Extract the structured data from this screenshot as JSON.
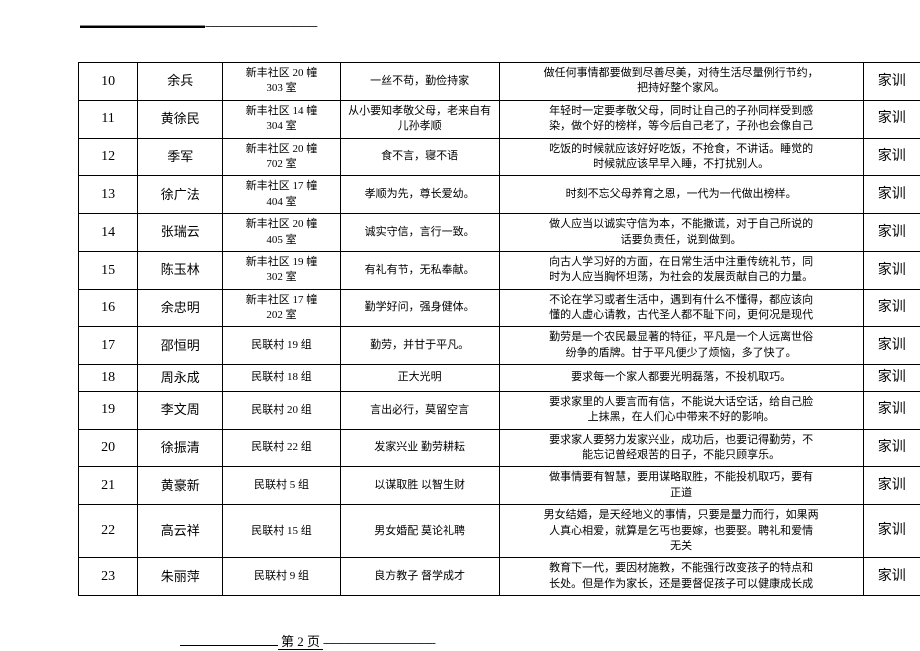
{
  "topDashes": "------------------------------------------",
  "pageLabel": "第 2 页",
  "footerDashes": "------------------------------------------",
  "rows": [
    {
      "num": "10",
      "name": "余兵",
      "addr": "新丰社区 20 幢\n303 室",
      "motto": "一丝不苟，勤俭持家",
      "desc": "做任何事情都要做到尽善尽美，对待生活尽量例行节约，\n把持好整个家风。",
      "type": "家训"
    },
    {
      "num": "11",
      "name": "黄徐民",
      "addr": "新丰社区 14 幢\n304 室",
      "motto": "从小要知孝敬父母，老来自有\n儿孙孝顺",
      "desc": "年轻时一定要孝敬父母，同时让自己的子孙同样受到感\n染，做个好的榜样，等今后自己老了，子孙也会像自己",
      "type": "家训"
    },
    {
      "num": "12",
      "name": "季军",
      "addr": "新丰社区 20 幢\n702 室",
      "motto": "食不言，寝不语",
      "desc": "吃饭的时候就应该好好吃饭，不抢食，不讲话。睡觉的\n时候就应该早早入睡，不打扰别人。",
      "type": "家训"
    },
    {
      "num": "13",
      "name": "徐广法",
      "addr": "新丰社区 17 幢\n404 室",
      "motto": "孝顺为先，尊长爱幼。",
      "desc": "时刻不忘父母养育之恩，一代为一代做出榜样。",
      "type": "家训"
    },
    {
      "num": "14",
      "name": "张瑞云",
      "addr": "新丰社区 20 幢\n405 室",
      "motto": "诚实守信，言行一致。",
      "desc": "做人应当以诚实守信为本，不能撒谎，对于自己所说的\n话要负责任，说到做到。",
      "type": "家训"
    },
    {
      "num": "15",
      "name": "陈玉林",
      "addr": "新丰社区 19 幢\n302 室",
      "motto": "有礼有节，无私奉献。",
      "desc": "向古人学习好的方面，在日常生活中注重传统礼节，同\n时为人应当胸怀坦荡，为社会的发展贡献自己的力量。",
      "type": "家训"
    },
    {
      "num": "16",
      "name": "余忠明",
      "addr": "新丰社区 17 幢\n202 室",
      "motto": "勤学好问，强身健体。",
      "desc": "不论在学习或者生活中，遇到有什么不懂得，都应该向\n懂的人虚心请教，古代圣人都不耻下问，更何况是现代",
      "type": "家训"
    },
    {
      "num": "17",
      "name": "邵恒明",
      "addr": "民联村 19 组",
      "motto": "勤劳，并甘于平凡。",
      "desc": "勤劳是一个农民最显著的特征，平凡是一个人远离世俗\n纷争的盾牌。甘于平凡便少了烦恼，多了快了。",
      "type": "家训"
    },
    {
      "num": "18",
      "name": "周永成",
      "addr": "民联村 18 组",
      "motto": "正大光明",
      "desc": "要求每一个家人都要光明磊落，不投机取巧。",
      "type": "家训"
    },
    {
      "num": "19",
      "name": "李文周",
      "addr": "民联村 20 组",
      "motto": "言出必行，莫留空言",
      "desc": "要求家里的人要言而有信，不能说大话空话，给自己脸\n上抹黑，在人们心中带来不好的影响。",
      "type": "家训"
    },
    {
      "num": "20",
      "name": "徐振清",
      "addr": "民联村 22 组",
      "motto": "发家兴业  勤劳耕耘",
      "desc": "要求家人要努力发家兴业，成功后，也要记得勤劳，不\n能忘记曾经艰苦的日子，不能只顾享乐。",
      "type": "家训"
    },
    {
      "num": "21",
      "name": "黄豪新",
      "addr": "民联村 5 组",
      "motto": "以谋取胜 以智生财",
      "desc": "做事情要有智慧，要用谋略取胜，不能投机取巧，要有\n正道",
      "type": "家训"
    },
    {
      "num": "22",
      "name": "高云祥",
      "addr": "民联村 15 组",
      "motto": "男女婚配 莫论礼聘",
      "desc": "男女结婚，是天经地义的事情，只要是量力而行，如果两\n人真心相爱，就算是乞丐也要嫁，也要娶。聘礼和爱情\n无关",
      "type": "家训"
    },
    {
      "num": "23",
      "name": "朱丽萍",
      "addr": "民联村 9 组",
      "motto": "良方教子  督学成才",
      "desc": "教育下一代，要因材施教，不能强行改变孩子的特点和\n长处。但是作为家长，还是要督促孩子可以健康成长成",
      "type": "家训"
    }
  ]
}
